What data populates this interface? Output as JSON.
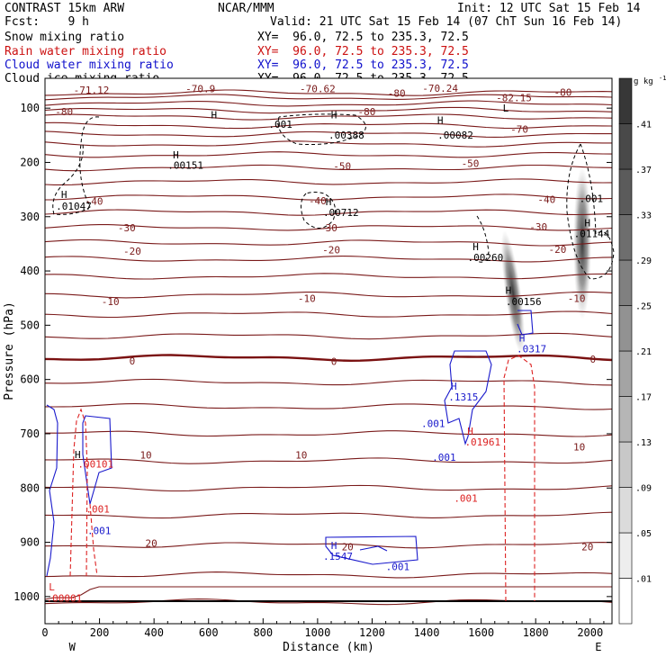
{
  "header": {
    "model": "CONTRAST 15km ARW",
    "center": "NCAR/MMM",
    "init": "Init: 12 UTC Sat 15 Feb 14",
    "fcst": "Fcst:    9 h",
    "valid": "Valid: 21 UTC Sat 15 Feb 14 (07 ChT Sun 16 Feb 14)",
    "fields": [
      {
        "label": "Snow mixing ratio",
        "xy": "XY=  96.0, 72.5 to 235.3, 72.5",
        "color": "#000000"
      },
      {
        "label": "Rain water mixing ratio",
        "xy": "XY=  96.0, 72.5 to 235.3, 72.5",
        "color": "#cc1111"
      },
      {
        "label": "Cloud water mixing ratio",
        "xy": "XY=  96.0, 72.5 to 235.3, 72.5",
        "color": "#1111cc"
      },
      {
        "label": "Cloud ice mixing ratio",
        "xy": "XY=  96.0, 72.5 to 235.3, 72.5",
        "color": "#000000"
      }
    ]
  },
  "colors": {
    "isotherm": "#7a1a1a",
    "zero_isotherm": "#7a1010",
    "rain": "#dd2222",
    "cloud_water": "#1a1acc",
    "ice": "#000000"
  },
  "chart_data": {
    "type": "heatmap",
    "xlabel": "Distance (km)",
    "ylabel": "Pressure (hPa)",
    "xlim": [
      0,
      2080
    ],
    "ylim": [
      1050,
      45
    ],
    "xticks": [
      0,
      200,
      400,
      600,
      800,
      1000,
      1200,
      1400,
      1600,
      1800,
      2000
    ],
    "yticks": [
      100,
      200,
      300,
      400,
      500,
      600,
      700,
      800,
      900,
      1000
    ],
    "x_end_labels": {
      "left": "W",
      "right": "E"
    },
    "colorbar": {
      "unit": "g kg",
      "unit_exp": "-1",
      "levels": [
        0.01,
        0.05,
        0.09,
        0.13,
        0.17,
        0.21,
        0.25,
        0.29,
        0.33,
        0.37,
        0.41
      ],
      "labels": [
        ".01",
        ".05",
        ".09",
        ".13",
        ".17",
        ".21",
        ".25",
        ".29",
        ".33",
        ".37",
        ".41"
      ]
    },
    "isotherm_labels": [
      {
        "text": "-71.12",
        "x": 170,
        "p": 68
      },
      {
        "text": "-70.9",
        "x": 570,
        "p": 66
      },
      {
        "text": "-70.62",
        "x": 1000,
        "p": 66
      },
      {
        "text": "-70.24",
        "x": 1450,
        "p": 65
      },
      {
        "text": "-82.15",
        "x": 1720,
        "p": 82
      },
      {
        "text": "-80",
        "x": 1900,
        "p": 72
      },
      {
        "text": "-80",
        "x": 1290,
        "p": 74
      },
      {
        "text": "-80",
        "x": 70,
        "p": 108
      },
      {
        "text": "-80",
        "x": 1180,
        "p": 108
      },
      {
        "text": "-70",
        "x": 1740,
        "p": 140
      },
      {
        "text": "-50",
        "x": 1090,
        "p": 208
      },
      {
        "text": "-50",
        "x": 1560,
        "p": 203
      },
      {
        "text": "-40",
        "x": 180,
        "p": 273
      },
      {
        "text": "-40",
        "x": 1000,
        "p": 272
      },
      {
        "text": "-40",
        "x": 1840,
        "p": 270
      },
      {
        "text": "-30",
        "x": 300,
        "p": 322
      },
      {
        "text": "-30",
        "x": 1040,
        "p": 322
      },
      {
        "text": "-30",
        "x": 1810,
        "p": 320
      },
      {
        "text": "-20",
        "x": 320,
        "p": 365
      },
      {
        "text": "-20",
        "x": 1050,
        "p": 363
      },
      {
        "text": "-20",
        "x": 1880,
        "p": 362
      },
      {
        "text": "-10",
        "x": 240,
        "p": 458
      },
      {
        "text": "-10",
        "x": 960,
        "p": 452
      },
      {
        "text": "-10",
        "x": 1950,
        "p": 452
      },
      {
        "text": "0",
        "x": 320,
        "p": 567
      },
      {
        "text": "0",
        "x": 1060,
        "p": 568
      },
      {
        "text": "0",
        "x": 2010,
        "p": 564
      },
      {
        "text": "10",
        "x": 370,
        "p": 741
      },
      {
        "text": "10",
        "x": 940,
        "p": 741
      },
      {
        "text": "10",
        "x": 1960,
        "p": 726
      },
      {
        "text": "20",
        "x": 390,
        "p": 903
      },
      {
        "text": "20",
        "x": 1110,
        "p": 910
      },
      {
        "text": "20",
        "x": 1990,
        "p": 910
      }
    ],
    "extrema": [
      {
        "text": "H",
        "x": 620,
        "p": 114,
        "color": "ice"
      },
      {
        "text": "H",
        "x": 1060,
        "p": 114,
        "color": "ice"
      },
      {
        "text": "H",
        "x": 1450,
        "p": 124,
        "color": "ice"
      },
      {
        "text": "H",
        "x": 480,
        "p": 188,
        "color": "ice"
      },
      {
        "text": "H",
        "x": 70,
        "p": 261,
        "color": "ice"
      },
      {
        "text": "H",
        "x": 1040,
        "p": 274,
        "color": "ice"
      },
      {
        "text": "H",
        "x": 1580,
        "p": 357,
        "color": "ice"
      },
      {
        "text": "H",
        "x": 1990,
        "p": 313,
        "color": "ice"
      },
      {
        "text": "H",
        "x": 1700,
        "p": 437,
        "color": "ice"
      },
      {
        "text": "L",
        "x": 1690,
        "p": 101,
        "color": "ice"
      },
      {
        "text": "H",
        "x": 1750,
        "p": 525,
        "color": "cloud_water"
      },
      {
        "text": "H",
        "x": 1500,
        "p": 614,
        "color": "cloud_water"
      },
      {
        "text": "H",
        "x": 120,
        "p": 740,
        "color": "ice"
      },
      {
        "text": "H",
        "x": 1060,
        "p": 907,
        "color": "cloud_water"
      },
      {
        "text": "H",
        "x": 1560,
        "p": 697,
        "color": "rain"
      },
      {
        "text": "L",
        "x": 25,
        "p": 984,
        "color": "rain"
      }
    ],
    "contour_values": [
      {
        "text": ".001",
        "x": 820,
        "p": 131,
        "color": "ice"
      },
      {
        "text": ".00388",
        "x": 1040,
        "p": 151,
        "color": "ice"
      },
      {
        "text": ".00082",
        "x": 1440,
        "p": 151,
        "color": "ice"
      },
      {
        "text": ".00151",
        "x": 450,
        "p": 207,
        "color": "ice"
      },
      {
        "text": ".01047",
        "x": 40,
        "p": 282,
        "color": "ice"
      },
      {
        "text": ".00712",
        "x": 1020,
        "p": 294,
        "color": "ice"
      },
      {
        "text": ".00260",
        "x": 1550,
        "p": 377,
        "color": "ice"
      },
      {
        "text": ".001",
        "x": 1960,
        "p": 268,
        "color": "ice"
      },
      {
        "text": ".01144",
        "x": 1940,
        "p": 333,
        "color": "ice"
      },
      {
        "text": ".00156",
        "x": 1690,
        "p": 458,
        "color": "ice"
      },
      {
        "text": ".0317",
        "x": 1730,
        "p": 545,
        "color": "cloud_water"
      },
      {
        "text": ".1315",
        "x": 1480,
        "p": 634,
        "color": "cloud_water"
      },
      {
        "text": ".001",
        "x": 1380,
        "p": 683,
        "color": "cloud_water"
      },
      {
        "text": ".001",
        "x": 1420,
        "p": 745,
        "color": "cloud_water"
      },
      {
        "text": ".01961",
        "x": 1540,
        "p": 717,
        "color": "rain"
      },
      {
        "text": ".001",
        "x": 1500,
        "p": 820,
        "color": "rain"
      },
      {
        "text": ".001",
        "x": 150,
        "p": 840,
        "color": "rain"
      },
      {
        "text": ".001",
        "x": 155,
        "p": 880,
        "color": "cloud_water"
      },
      {
        "text": ".1547",
        "x": 1020,
        "p": 927,
        "color": "cloud_water"
      },
      {
        "text": ".001",
        "x": 1250,
        "p": 946,
        "color": "cloud_water"
      },
      {
        "text": ".00001",
        "x": 5,
        "p": 1004,
        "color": "rain"
      },
      {
        "text": ".00101",
        "x": 120,
        "p": 757,
        "color": "rain"
      }
    ]
  }
}
